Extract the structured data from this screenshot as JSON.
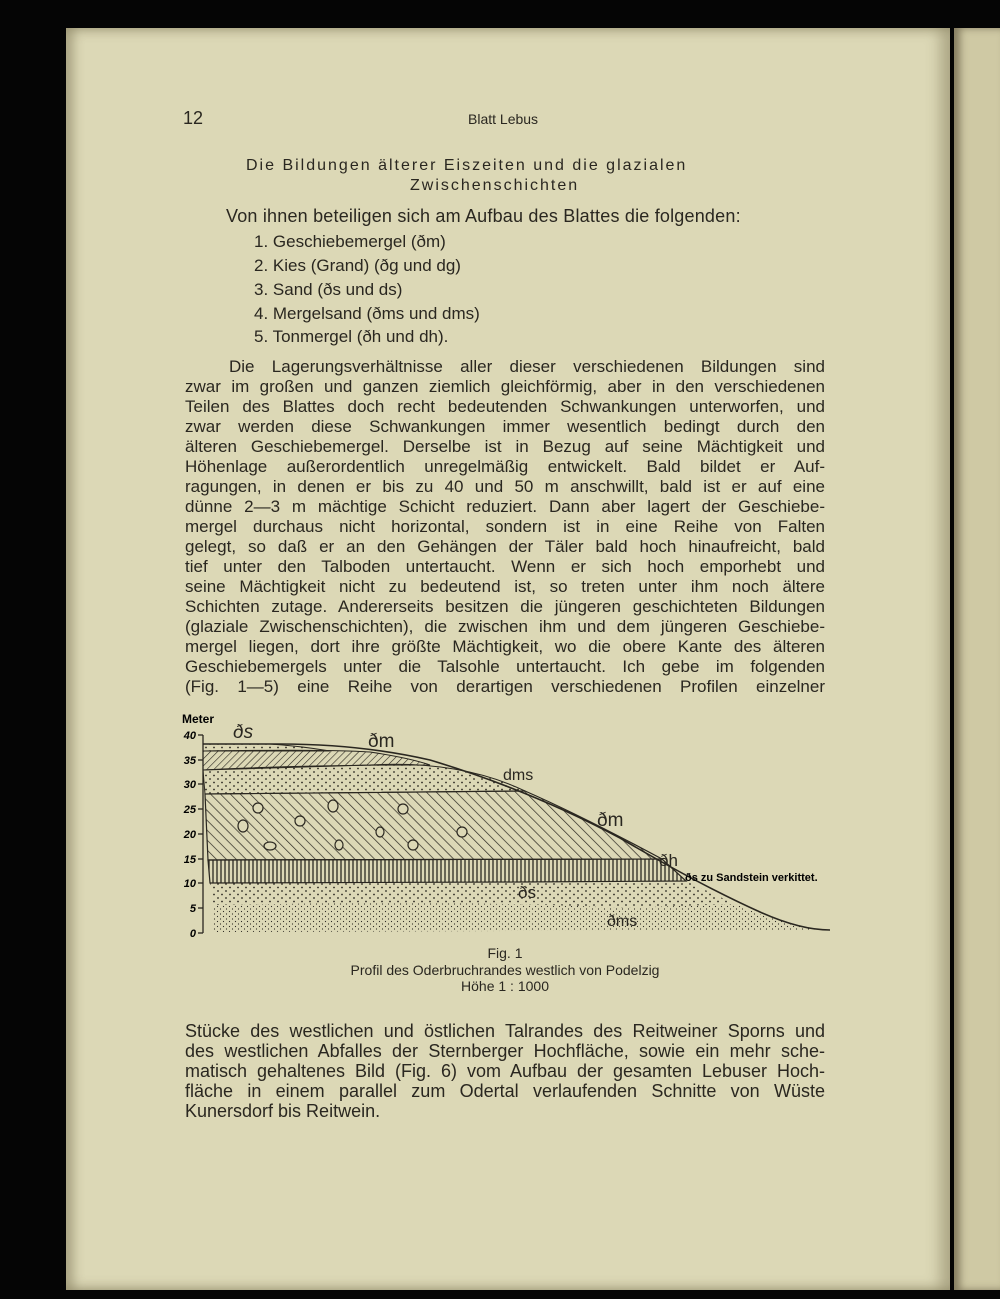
{
  "header": {
    "page_number": "12",
    "running_title": "Blatt Lebus"
  },
  "section_title": [
    "Die Bildungen älterer Eiszeiten und die glazialen",
    "Zwischenschichten"
  ],
  "intro": "Von ihnen beteiligen sich am Aufbau des Blattes die folgenden:",
  "list": [
    "1. Geschiebemergel (ðm)",
    "2. Kies (Grand) (ðg und dg)",
    "3. Sand (ðs und ds)",
    "4. Mergelsand (ðms und dms)",
    "5. Tonmergel (ðh und dh)."
  ],
  "paragraph1": [
    "Die Lagerungsverhältnisse aller dieser verschiedenen Bildungen sind",
    "zwar im großen und ganzen ziemlich gleichförmig, aber in den verschiedenen",
    "Teilen des Blattes doch recht bedeutenden Schwankungen unterworfen, und",
    "zwar werden diese Schwankungen immer wesentlich bedingt durch den",
    "älteren Geschiebemergel. Derselbe ist in Bezug auf seine Mächtigkeit und",
    "Höhenlage außerordentlich unregelmäßig entwickelt. Bald bildet er Auf-",
    "ragungen, in denen er bis zu 40 und 50 m anschwillt, bald ist er auf eine",
    "dünne 2—3 m mächtige Schicht reduziert. Dann aber lagert der Geschiebe-",
    "mergel durchaus nicht horizontal, sondern ist in eine Reihe von Falten",
    "gelegt, so daß er an den Gehängen der Täler bald hoch hinaufreicht, bald",
    "tief unter den Talboden untertaucht. Wenn er sich hoch emporhebt und",
    "seine Mächtigkeit nicht zu bedeutend ist, so treten unter ihm noch ältere",
    "Schichten zutage. Andererseits besitzen die jüngeren geschichteten Bildungen",
    "(glaziale Zwischenschichten), die zwischen ihm und dem jüngeren Geschiebe-",
    "mergel liegen, dort ihre größte Mächtigkeit, wo die obere Kante des älteren",
    "Geschiebemergels unter die Talsohle untertaucht. Ich gebe im folgenden",
    "(Fig. 1—5) eine Reihe von derartigen verschiedenen Profilen einzelner"
  ],
  "figure": {
    "axis_title": "Meter",
    "ticks": [
      "40",
      "35",
      "30",
      "25",
      "20",
      "15",
      "10",
      "5",
      "0"
    ],
    "labels": {
      "ds_top": "ðs",
      "dm_top": "ðm",
      "dms_mid": "dms",
      "dm_slope": "ðm",
      "dh": "ðh",
      "sandstone": "ðs zu Sandstein verkittet.",
      "ds_low": "ðs",
      "dms_low": "ðms"
    },
    "caption": [
      "Fig. 1",
      "Profil des Oderbruchrandes westlich von Podelzig",
      "Höhe 1 : 1000"
    ]
  },
  "paragraph2": [
    "Stücke des westlichen und östlichen Talrandes des Reitweiner Sporns und",
    "des westlichen Abfalles der Sternberger Hochfläche, sowie ein mehr sche-",
    "matisch gehaltenes Bild (Fig. 6) vom Aufbau der gesamten Lebuser Hoch-",
    "fläche in einem parallel zum Odertal verlaufenden Schnitte von Wüste",
    "Kunersdorf bis Reitwein."
  ],
  "colors": {
    "paper": "#dcd8b6",
    "ink": "#2a2720",
    "background": "#050505"
  }
}
